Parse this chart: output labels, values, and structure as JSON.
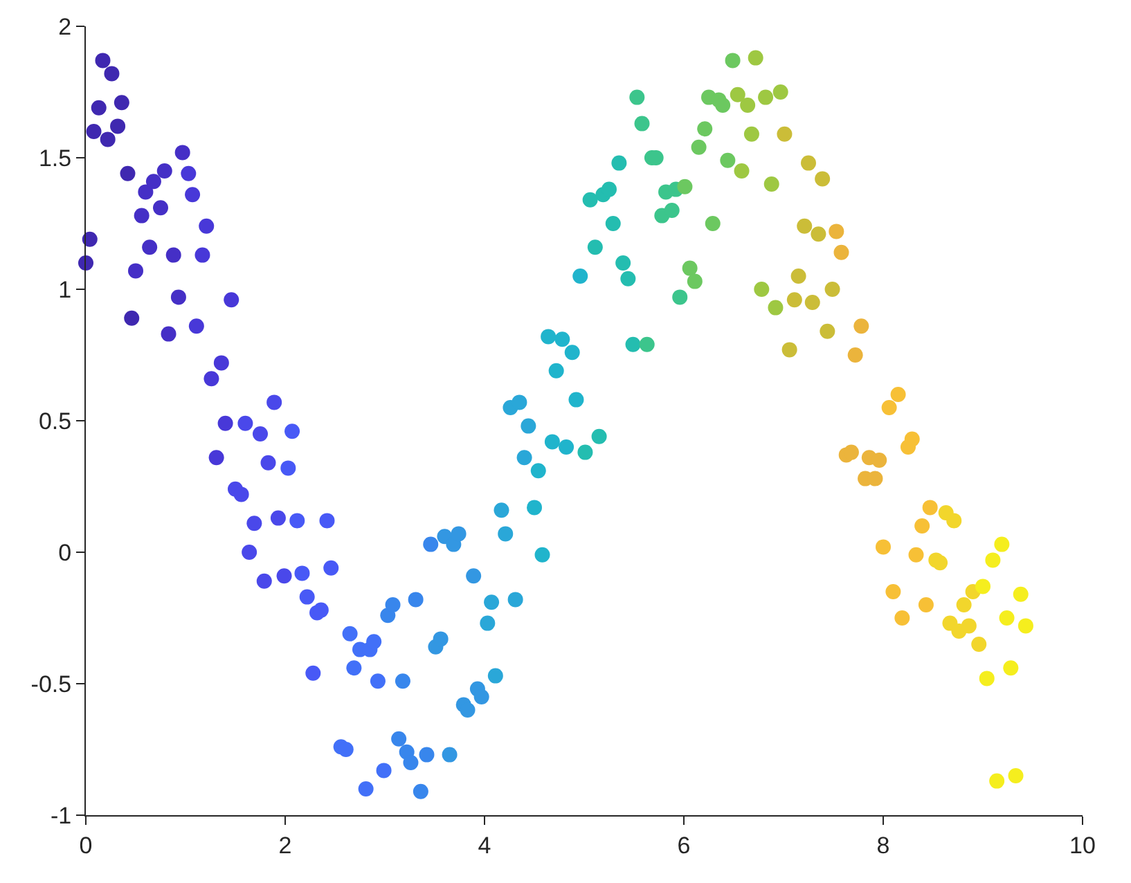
{
  "chart_data": {
    "type": "scatter",
    "marker": "circle",
    "x": [
      0,
      0.04,
      0.08,
      0.13,
      0.17,
      0.22,
      0.26,
      0.32,
      0.36,
      0.42,
      0.46,
      0.5,
      0.56,
      0.6,
      0.64,
      0.68,
      0.75,
      0.79,
      0.83,
      0.88,
      0.93,
      0.97,
      1.03,
      1.07,
      1.11,
      1.17,
      1.21,
      1.26,
      1.31,
      1.36,
      1.4,
      1.46,
      1.5,
      1.56,
      1.6,
      1.64,
      1.69,
      1.75,
      1.79,
      1.83,
      1.89,
      1.93,
      1.99,
      2.03,
      2.07,
      2.12,
      2.17,
      2.22,
      2.28,
      2.32,
      2.36,
      2.42,
      2.46,
      2.56,
      2.61,
      2.65,
      2.69,
      2.75,
      2.81,
      2.85,
      2.89,
      2.93,
      2.99,
      3.03,
      3.08,
      3.14,
      3.18,
      3.22,
      3.26,
      3.31,
      3.36,
      3.42,
      3.46,
      3.51,
      3.56,
      3.6,
      3.65,
      3.69,
      3.74,
      3.79,
      3.83,
      3.89,
      3.93,
      3.97,
      4.03,
      4.07,
      4.11,
      4.17,
      4.21,
      4.26,
      4.31,
      4.35,
      4.4,
      4.44,
      4.5,
      4.54,
      4.58,
      4.64,
      4.68,
      4.72,
      4.78,
      4.82,
      4.88,
      4.92,
      4.96,
      5.01,
      5.06,
      5.11,
      5.15,
      5.19,
      5.25,
      5.29,
      5.35,
      5.39,
      5.44,
      5.49,
      5.53,
      5.58,
      5.63,
      5.68,
      5.72,
      5.78,
      5.82,
      5.88,
      5.92,
      5.96,
      6.01,
      6.06,
      6.11,
      6.15,
      6.21,
      6.25,
      6.29,
      6.35,
      6.39,
      6.44,
      6.49,
      6.54,
      6.58,
      6.64,
      6.68,
      6.72,
      6.78,
      6.82,
      6.88,
      6.92,
      6.97,
      7.01,
      7.06,
      7.11,
      7.15,
      7.21,
      7.25,
      7.29,
      7.35,
      7.39,
      7.44,
      7.49,
      7.53,
      7.58,
      7.63,
      7.68,
      7.72,
      7.78,
      7.82,
      7.86,
      7.92,
      7.96,
      8,
      8.06,
      8.1,
      8.15,
      8.19,
      8.25,
      8.29,
      8.33,
      8.39,
      8.43,
      8.47,
      8.53,
      8.57,
      8.63,
      8.67,
      8.71,
      8.76,
      8.81,
      8.86,
      8.9,
      8.96,
      9,
      9.04,
      9.1,
      9.14,
      9.19,
      9.24,
      9.28,
      9.33,
      9.38,
      9.43
    ],
    "values": [
      1.1,
      1.19,
      1.6,
      1.69,
      1.87,
      1.57,
      1.82,
      1.62,
      1.71,
      1.44,
      0.89,
      1.07,
      1.28,
      1.37,
      1.16,
      1.41,
      1.31,
      1.45,
      0.83,
      1.13,
      0.97,
      1.52,
      1.44,
      1.36,
      0.86,
      1.13,
      1.24,
      0.66,
      0.36,
      0.72,
      0.49,
      0.96,
      0.24,
      0.22,
      0.49,
      0,
      0.11,
      0.45,
      -0.11,
      0.34,
      0.57,
      0.13,
      -0.09,
      0.32,
      0.46,
      0.12,
      -0.08,
      -0.17,
      -0.46,
      -0.23,
      -0.22,
      0.12,
      -0.06,
      -0.74,
      -0.75,
      -0.31,
      -0.44,
      -0.37,
      -0.9,
      -0.37,
      -0.34,
      -0.49,
      -0.83,
      -0.24,
      -0.2,
      -0.71,
      -0.49,
      -0.76,
      -0.8,
      -0.18,
      -0.91,
      -0.77,
      0.03,
      -0.36,
      -0.33,
      0.06,
      -0.77,
      0.03,
      0.07,
      -0.58,
      -0.6,
      -0.09,
      -0.52,
      -0.55,
      -0.27,
      -0.19,
      -0.47,
      0.16,
      0.07,
      0.55,
      -0.18,
      0.57,
      0.36,
      0.48,
      0.17,
      0.31,
      -0.01,
      0.82,
      0.42,
      0.69,
      0.81,
      0.4,
      0.76,
      0.58,
      1.05,
      0.38,
      1.34,
      1.16,
      0.44,
      1.36,
      1.38,
      1.25,
      1.48,
      1.1,
      1.04,
      0.79,
      1.73,
      1.63,
      0.79,
      1.5,
      1.5,
      1.28,
      1.37,
      1.3,
      1.38,
      0.97,
      1.39,
      1.08,
      1.03,
      1.54,
      1.61,
      1.73,
      1.25,
      1.72,
      1.7,
      1.49,
      1.87,
      1.74,
      1.45,
      1.7,
      1.59,
      1.88,
      1,
      1.73,
      1.4,
      0.93,
      1.75,
      1.59,
      0.77,
      0.96,
      1.05,
      1.24,
      1.48,
      0.95,
      1.21,
      1.42,
      0.84,
      1,
      1.22,
      1.14,
      0.37,
      0.38,
      0.75,
      0.86,
      0.28,
      0.36,
      0.28,
      0.35,
      0.02,
      0.55,
      -0.15,
      0.6,
      -0.25,
      0.4,
      0.43,
      -0.01,
      0.1,
      -0.2,
      0.17,
      -0.03,
      -0.04,
      0.15,
      -0.27,
      0.12,
      -0.3,
      -0.2,
      -0.28,
      -0.15,
      -0.35,
      -0.13,
      -0.48,
      -0.03,
      -0.87,
      0.03,
      -0.25,
      -0.44,
      -0.85,
      -0.16,
      -0.28
    ],
    "colors": [
      "#3f28b0",
      "#3f28b0",
      "#3f28b0",
      "#3f28b0",
      "#3f28b0",
      "#3f28b0",
      "#3f28b0",
      "#3f28b0",
      "#3f28b0",
      "#3f28b0",
      "#3f28b0",
      "#452fc6",
      "#452fc6",
      "#452fc6",
      "#452fc6",
      "#452fc6",
      "#452fc6",
      "#452fc6",
      "#452fc6",
      "#452fc6",
      "#452fc6",
      "#452fc6",
      "#4838d8",
      "#4838d8",
      "#4838d8",
      "#4838d8",
      "#4838d8",
      "#4838d8",
      "#4838d8",
      "#4838d8",
      "#4838d8",
      "#4838d8",
      "#4a48ea",
      "#4a48ea",
      "#4a48ea",
      "#4a48ea",
      "#4a48ea",
      "#4a48ea",
      "#4a48ea",
      "#4a48ea",
      "#4a48ea",
      "#4a48ea",
      "#4a48ea",
      "#4859f6",
      "#4859f6",
      "#4859f6",
      "#4859f6",
      "#4859f6",
      "#4859f6",
      "#4859f6",
      "#4859f6",
      "#4859f6",
      "#4859f6",
      "#4270f8",
      "#4270f8",
      "#4270f8",
      "#4270f8",
      "#4270f8",
      "#4270f8",
      "#4270f8",
      "#4270f8",
      "#4270f8",
      "#4270f8",
      "#3886ec",
      "#3886ec",
      "#3886ec",
      "#3886ec",
      "#3886ec",
      "#3886ec",
      "#3886ec",
      "#3886ec",
      "#3886ec",
      "#3886ec",
      "#3397e2",
      "#3397e2",
      "#3397e2",
      "#3397e2",
      "#3397e2",
      "#3397e2",
      "#3397e2",
      "#3397e2",
      "#3397e2",
      "#3397e2",
      "#3397e2",
      "#2aa7d8",
      "#2aa7d8",
      "#2aa7d8",
      "#2aa7d8",
      "#2aa7d8",
      "#2aa7d8",
      "#2aa7d8",
      "#2aa7d8",
      "#2aa7d8",
      "#2aa7d8",
      "#20b4cc",
      "#20b4cc",
      "#20b4cc",
      "#20b4cc",
      "#20b4cc",
      "#20b4cc",
      "#20b4cc",
      "#20b4cc",
      "#20b4cc",
      "#20b4cc",
      "#20b4cc",
      "#24bdb0",
      "#24bdb0",
      "#24bdb0",
      "#24bdb0",
      "#24bdb0",
      "#24bdb0",
      "#24bdb0",
      "#24bdb0",
      "#24bdb0",
      "#24bdb0",
      "#24bdb0",
      "#3cc58c",
      "#3cc58c",
      "#3cc58c",
      "#3cc58c",
      "#3cc58c",
      "#3cc58c",
      "#3cc58c",
      "#3cc58c",
      "#3cc58c",
      "#3cc58c",
      "#6cc860",
      "#6cc860",
      "#6cc860",
      "#6cc860",
      "#6cc860",
      "#6cc860",
      "#6cc860",
      "#6cc860",
      "#6cc860",
      "#6cc860",
      "#6cc860",
      "#9ec842",
      "#9ec842",
      "#9ec842",
      "#9ec842",
      "#9ec842",
      "#9ec842",
      "#9ec842",
      "#9ec842",
      "#9ec842",
      "#9ec842",
      "#cbbd38",
      "#cbbd38",
      "#cbbd38",
      "#cbbd38",
      "#cbbd38",
      "#cbbd38",
      "#cbbd38",
      "#cbbd38",
      "#cbbd38",
      "#cbbd38",
      "#cbbd38",
      "#ebb43c",
      "#ebb43c",
      "#ebb43c",
      "#ebb43c",
      "#ebb43c",
      "#ebb43c",
      "#ebb43c",
      "#ebb43c",
      "#ebb43c",
      "#ebb43c",
      "#f7c036",
      "#f7c036",
      "#f7c036",
      "#f7c036",
      "#f7c036",
      "#f7c036",
      "#f7c036",
      "#f7c036",
      "#f7c036",
      "#f7c036",
      "#f7c036",
      "#f2d62c",
      "#f2d62c",
      "#f2d62c",
      "#f2d62c",
      "#f2d62c",
      "#f2d62c",
      "#f2d62c",
      "#f2d62c",
      "#f2d62c",
      "#f2d62c",
      "#f5ee1e",
      "#f5ee1e",
      "#f5ee1e",
      "#f5ee1e",
      "#f5ee1e",
      "#f5ee1e",
      "#f5ee1e",
      "#f5ee1e",
      "#f5ee1e",
      "#f5ee1e"
    ],
    "xlim": [
      0,
      10
    ],
    "xticks": [
      0,
      2,
      4,
      6,
      8,
      10
    ],
    "ylim": [
      -1,
      2
    ],
    "yticks": [
      -1,
      -0.5,
      0,
      0.5,
      1,
      1.5,
      2
    ]
  }
}
